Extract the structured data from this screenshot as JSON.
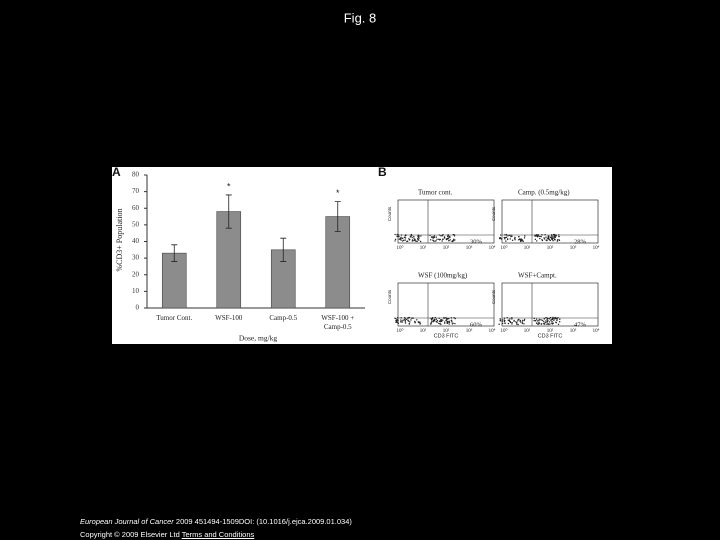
{
  "header": {
    "title": "Fig. 8"
  },
  "panel_a": {
    "label": "A"
  },
  "chart_data": {
    "type": "bar",
    "ylabel": "%CD3+ Population",
    "xlabel": "Dose, mg/kg",
    "categories": [
      "Tumor Cont.",
      "WSF-100",
      "Camp-0.5",
      "WSF-100 + Camp-0.5"
    ],
    "values": [
      33,
      58,
      35,
      55
    ],
    "errors": [
      5,
      10,
      7,
      9
    ],
    "color": "#8c8c8c",
    "ylim": [
      0,
      80
    ],
    "yticks": [
      0,
      10,
      20,
      30,
      40,
      50,
      60,
      70,
      80
    ],
    "annotations": [
      "*",
      "*"
    ]
  },
  "panel_b": {
    "label": "B",
    "plots": [
      {
        "title": "Tumor cont.",
        "percent": "30%"
      },
      {
        "title": "Camp. (0.5mg/kg)",
        "percent": "28%"
      },
      {
        "title": "WSF (100mg/kg)",
        "percent": "60%"
      },
      {
        "title": "WSF+Campt.",
        "percent": "47%"
      }
    ],
    "xlabel": "CD3 FITC",
    "ylabel": "Counts",
    "decade_ticks": [
      "10⁰",
      "10¹",
      "10²",
      "10³",
      "10⁴"
    ]
  },
  "footer": {
    "journal": "European Journal of Cancer",
    "citation": " 2009 451494-1509DOI: (10.1016/j.ejca.2009.01.034)",
    "copyright": "Copyright © 2009 Elsevier Ltd",
    "link": "Terms and Conditions"
  }
}
